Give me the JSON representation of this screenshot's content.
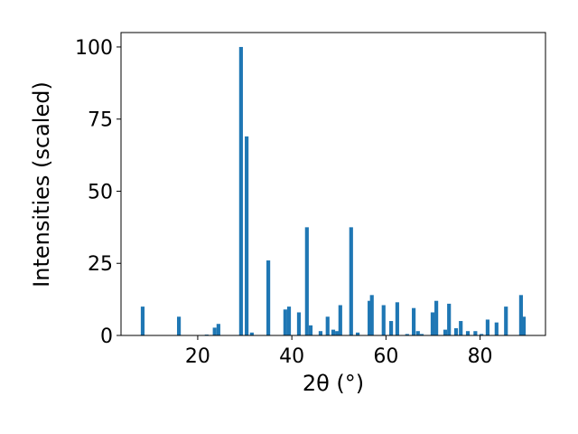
{
  "chart_data": {
    "type": "bar",
    "x": [
      8.3,
      16.0,
      21.9,
      23.6,
      24.4,
      29.2,
      30.4,
      31.5,
      35.0,
      38.6,
      39.4,
      41.5,
      43.2,
      44.0,
      46.1,
      47.6,
      48.8,
      49.6,
      50.3,
      52.6,
      54.0,
      56.5,
      57.0,
      59.5,
      61.1,
      62.4,
      64.5,
      65.9,
      66.8,
      67.6,
      69.9,
      70.7,
      72.6,
      73.4,
      74.9,
      75.9,
      77.4,
      79.0,
      80.3,
      81.6,
      83.5,
      85.5,
      88.7,
      89.3
    ],
    "values": [
      10,
      6.5,
      0.3,
      2.7,
      4,
      100,
      69,
      1,
      26,
      9,
      10,
      8,
      37.5,
      3.5,
      1.5,
      6.5,
      2,
      1.5,
      10.5,
      37.5,
      1,
      12,
      14,
      10.5,
      5,
      11.5,
      0.5,
      9.5,
      1.5,
      0.5,
      8,
      12,
      2,
      11,
      2.5,
      5,
      1.5,
      1.5,
      0.5,
      5.5,
      4.5,
      10,
      14,
      6.5
    ],
    "color": "#1f77b4",
    "xlabel": "2θ (°)",
    "ylabel": "Intensities (scaled)",
    "xlim": [
      3.7,
      93.9
    ],
    "xticks": [
      20,
      40,
      60,
      80
    ],
    "ylim": [
      0,
      105
    ],
    "yticks": [
      0,
      25,
      50,
      75,
      100
    ]
  }
}
